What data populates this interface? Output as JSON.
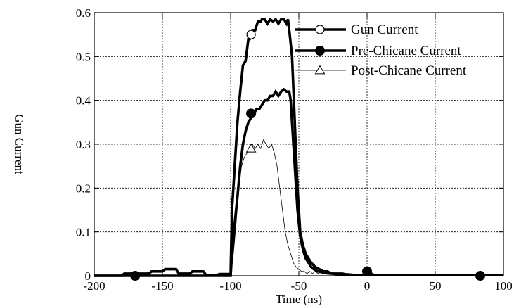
{
  "chart_data": {
    "type": "line",
    "xlabel": "Time (ns)",
    "ylabel": "Gun Current",
    "xlim": [
      -200,
      100
    ],
    "ylim": [
      0,
      0.6
    ],
    "x_ticks": [
      -200,
      -150,
      -100,
      -50,
      0,
      50,
      100
    ],
    "y_ticks": [
      0,
      0.1,
      0.2,
      0.3,
      0.4,
      0.5,
      0.6
    ],
    "x_tick_labels": [
      "-200",
      "-150",
      "-100",
      "-50",
      "0",
      "50",
      "100"
    ],
    "y_tick_labels": [
      "0",
      "0.1",
      "0.2",
      "0.3",
      "0.4",
      "0.5",
      "0.6"
    ],
    "grid": true,
    "legend_position": "top-right",
    "series": [
      {
        "name": "Gun Current",
        "marker": "open-circle",
        "line": "thick",
        "x": [
          -200,
          -190,
          -180,
          -178,
          -170,
          -160,
          -158,
          -150,
          -148,
          -140,
          -138,
          -130,
          -128,
          -120,
          -118,
          -110,
          -108,
          -100,
          -99,
          -97,
          -95,
          -93,
          -91,
          -89,
          -87,
          -86,
          -84,
          -82,
          -80,
          -78,
          -77,
          -75,
          -73,
          -71,
          -69,
          -67,
          -65,
          -63,
          -61,
          -59,
          -58,
          -57,
          -55,
          -53,
          -51,
          -49,
          -47,
          -45,
          -43,
          -41,
          -38,
          -35,
          -32,
          -29,
          -26,
          -22,
          -18,
          -14,
          -10,
          -6,
          -2,
          0,
          5,
          10,
          20,
          30,
          40,
          50,
          60,
          70,
          80,
          90,
          100
        ],
        "y": [
          0,
          0,
          0,
          0.005,
          0.005,
          0.005,
          0.01,
          0.01,
          0.015,
          0.015,
          0.005,
          0.005,
          0.01,
          0.01,
          0.002,
          0.002,
          0.004,
          0.004,
          0.15,
          0.25,
          0.35,
          0.42,
          0.48,
          0.49,
          0.54,
          0.54,
          0.56,
          0.56,
          0.58,
          0.58,
          0.585,
          0.585,
          0.575,
          0.585,
          0.58,
          0.585,
          0.575,
          0.585,
          0.585,
          0.575,
          0.585,
          0.56,
          0.5,
          0.35,
          0.2,
          0.1,
          0.07,
          0.05,
          0.04,
          0.03,
          0.02,
          0.015,
          0.01,
          0.01,
          0.005,
          0.005,
          0.005,
          0.002,
          0.002,
          0.002,
          0.002,
          0.01,
          0.002,
          0.002,
          0.002,
          0.002,
          0.002,
          0.002,
          0.002,
          0.002,
          0.002,
          0.002,
          0.002
        ],
        "marker_x": [
          -85
        ],
        "marker_y": [
          0.55
        ]
      },
      {
        "name": "Pre-Chicane Current",
        "marker": "filled-circle",
        "line": "thick",
        "x": [
          -200,
          -100,
          -99,
          -97,
          -95,
          -93,
          -91,
          -89,
          -87,
          -85,
          -83,
          -81,
          -79,
          -77,
          -75,
          -73,
          -71,
          -69,
          -67,
          -65,
          -63,
          -61,
          -59,
          -57,
          -56,
          -55,
          -53,
          -51,
          -49,
          -47,
          -45,
          -43,
          -41,
          -39,
          -36,
          -33,
          -30,
          -26,
          -22,
          -18,
          -14,
          -10,
          -6,
          -2,
          0,
          10,
          20,
          30,
          40,
          50,
          60,
          70,
          80,
          90,
          100
        ],
        "y": [
          0,
          0,
          0.05,
          0.12,
          0.18,
          0.25,
          0.3,
          0.33,
          0.35,
          0.36,
          0.37,
          0.38,
          0.38,
          0.39,
          0.4,
          0.4,
          0.41,
          0.41,
          0.42,
          0.41,
          0.42,
          0.425,
          0.42,
          0.42,
          0.4,
          0.35,
          0.25,
          0.15,
          0.09,
          0.06,
          0.04,
          0.03,
          0.02,
          0.015,
          0.01,
          0.008,
          0.006,
          0.005,
          0.004,
          0.003,
          0.003,
          0.002,
          0.002,
          0.002,
          0.002,
          0.002,
          0.002,
          0.002,
          0.002,
          0.002,
          0.002,
          0.002,
          0.002,
          0.002,
          0.002
        ],
        "marker_x": [
          -170,
          -85,
          0,
          83
        ],
        "marker_y": [
          0,
          0.37,
          0.01,
          0
        ]
      },
      {
        "name": "Post-Chicane Current",
        "marker": "open-triangle",
        "line": "thin",
        "x": [
          -200,
          -100,
          -98,
          -96,
          -94,
          -92,
          -90,
          -88,
          -86,
          -84,
          -82,
          -80,
          -78,
          -76,
          -74,
          -72,
          -70,
          -68,
          -66,
          -64,
          -62,
          -60,
          -58,
          -56,
          -54,
          -52,
          -50,
          -48,
          -46,
          -44,
          -42,
          -40,
          -38,
          -36,
          -34,
          -32,
          -30,
          -28,
          -26,
          -24,
          -20,
          -10,
          0,
          20,
          40,
          60,
          80,
          100
        ],
        "y": [
          0,
          0,
          0.05,
          0.12,
          0.2,
          0.25,
          0.27,
          0.28,
          0.29,
          0.3,
          0.29,
          0.3,
          0.29,
          0.31,
          0.3,
          0.29,
          0.3,
          0.28,
          0.25,
          0.2,
          0.15,
          0.1,
          0.07,
          0.05,
          0.03,
          0.02,
          0.015,
          0.01,
          0.01,
          0.005,
          0.01,
          0.005,
          0.01,
          0.005,
          0.008,
          0.004,
          0.006,
          0.003,
          0.004,
          0.002,
          0.001,
          0,
          0,
          0,
          0,
          0,
          0,
          0
        ],
        "marker_x": [
          -85
        ],
        "marker_y": [
          0.29
        ]
      }
    ]
  }
}
